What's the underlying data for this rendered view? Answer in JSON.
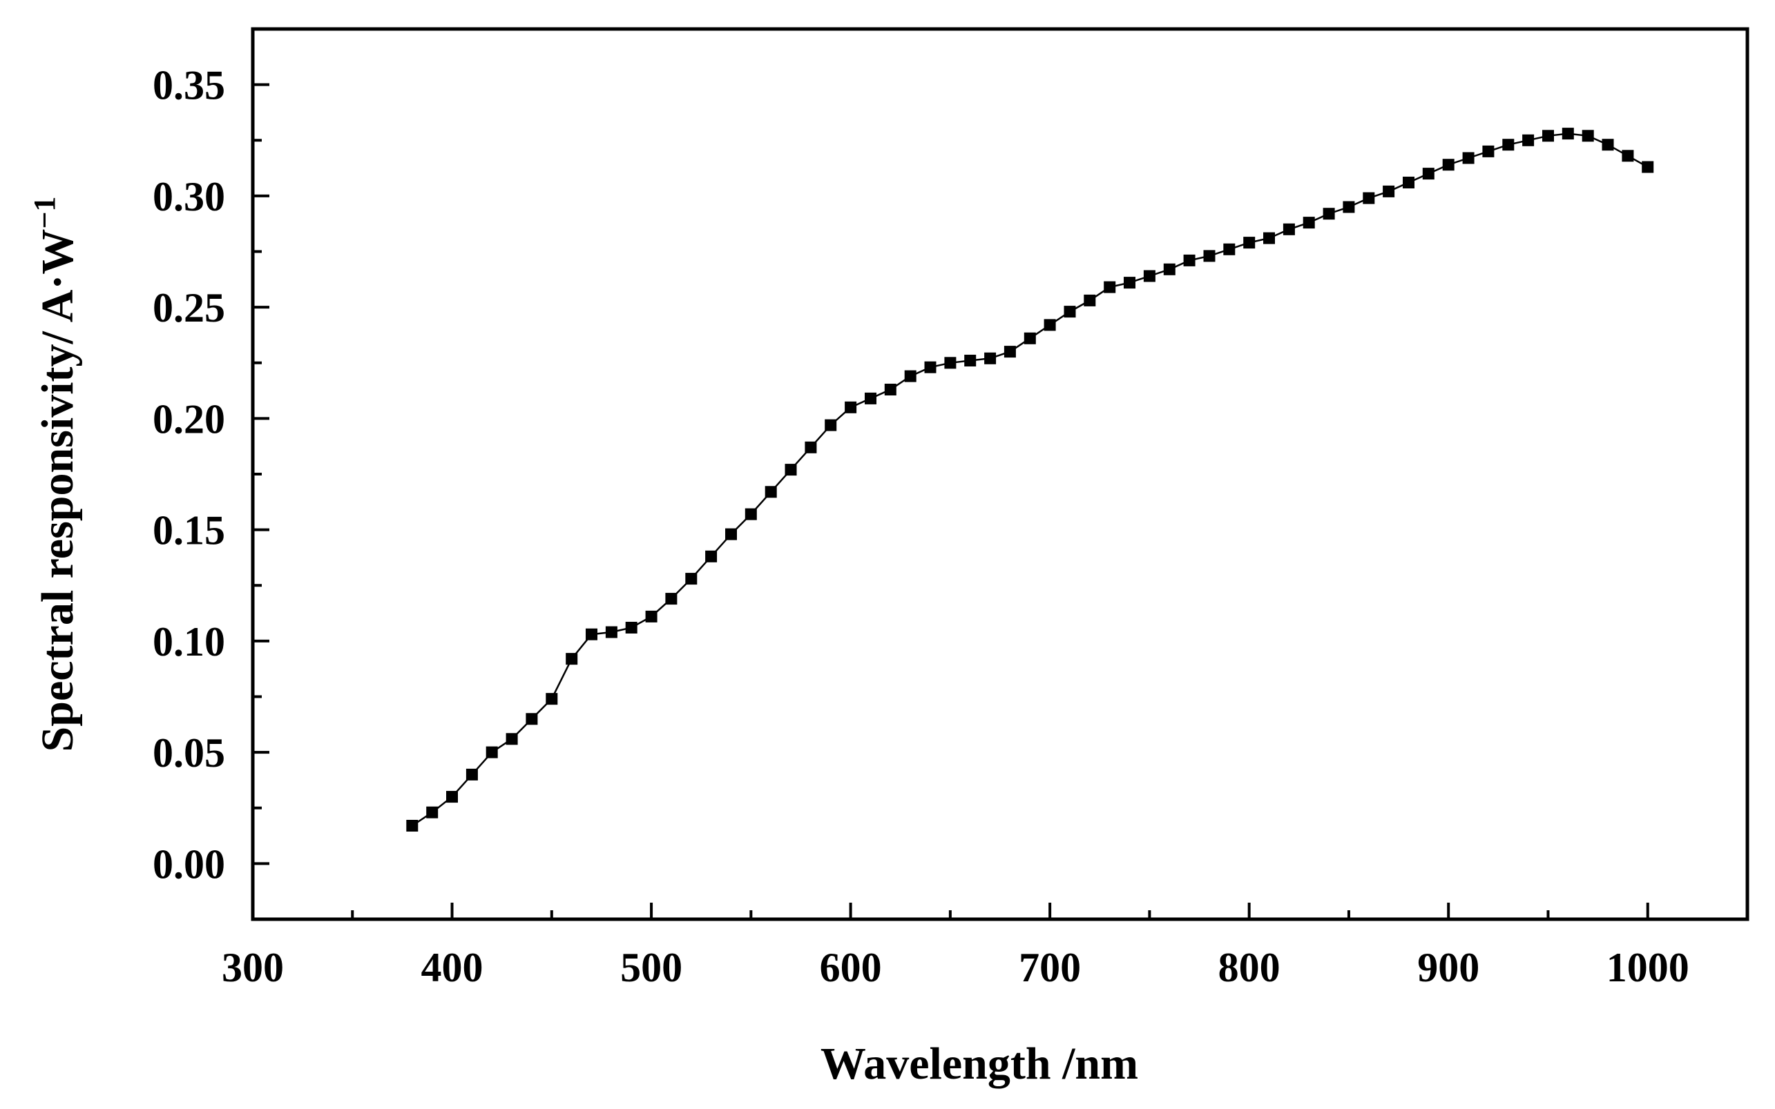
{
  "chart_data": {
    "type": "line",
    "title": "",
    "xlabel": "Wavelength /nm",
    "ylabel_main": "Spectral responsivity/ A·W",
    "ylabel_sup": "−1",
    "xlim": [
      300,
      1050
    ],
    "ylim": [
      -0.025,
      0.375
    ],
    "x_ticks": [
      300,
      400,
      500,
      600,
      700,
      800,
      900,
      1000
    ],
    "x_tick_labels": [
      "300",
      "400",
      "500",
      "600",
      "700",
      "800",
      "900",
      "1000"
    ],
    "x_minor_ticks": [
      350,
      450,
      550,
      650,
      750,
      850,
      950
    ],
    "y_ticks": [
      0.0,
      0.05,
      0.1,
      0.15,
      0.2,
      0.25,
      0.3,
      0.35
    ],
    "y_tick_labels": [
      "0.00",
      "0.05",
      "0.10",
      "0.15",
      "0.20",
      "0.25",
      "0.30",
      "0.35"
    ],
    "y_minor_ticks": [
      0.025,
      0.075,
      0.125,
      0.175,
      0.225,
      0.275,
      0.325
    ],
    "grid": false,
    "marker": "square",
    "series": [
      {
        "name": "Spectral responsivity",
        "color": "#000000",
        "x": [
          380,
          390,
          400,
          410,
          420,
          430,
          440,
          450,
          460,
          470,
          480,
          490,
          500,
          510,
          520,
          530,
          540,
          550,
          560,
          570,
          580,
          590,
          600,
          610,
          620,
          630,
          640,
          650,
          660,
          670,
          680,
          690,
          700,
          710,
          720,
          730,
          740,
          750,
          760,
          770,
          780,
          790,
          800,
          810,
          820,
          830,
          840,
          850,
          860,
          870,
          880,
          890,
          900,
          910,
          920,
          930,
          940,
          950,
          960,
          970,
          980,
          990,
          1000
        ],
        "y": [
          0.017,
          0.023,
          0.03,
          0.04,
          0.05,
          0.056,
          0.065,
          0.074,
          0.092,
          0.103,
          0.104,
          0.106,
          0.111,
          0.119,
          0.128,
          0.138,
          0.148,
          0.157,
          0.167,
          0.177,
          0.187,
          0.197,
          0.205,
          0.209,
          0.213,
          0.219,
          0.223,
          0.225,
          0.226,
          0.227,
          0.23,
          0.236,
          0.242,
          0.248,
          0.253,
          0.259,
          0.261,
          0.264,
          0.267,
          0.271,
          0.273,
          0.276,
          0.279,
          0.281,
          0.285,
          0.288,
          0.292,
          0.295,
          0.299,
          0.302,
          0.306,
          0.31,
          0.314,
          0.317,
          0.32,
          0.323,
          0.325,
          0.327,
          0.328,
          0.327,
          0.323,
          0.318,
          0.313
        ]
      }
    ]
  }
}
